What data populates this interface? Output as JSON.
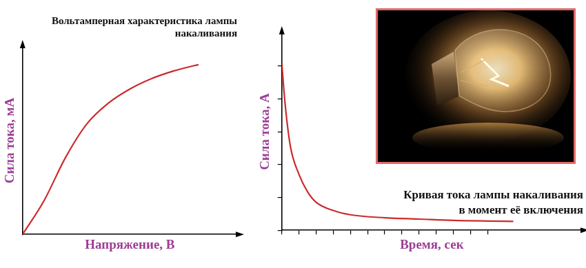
{
  "chart_data": [
    {
      "type": "line",
      "title": [
        "Вольтамперная характеристика лампы",
        "накаливания"
      ],
      "x_label": "Напряжение, В",
      "y_label": "Сила тока, мА",
      "x": [
        0,
        1,
        2,
        3,
        4,
        5,
        6,
        7,
        8,
        8.2
      ],
      "values": [
        0,
        1.8,
        4.1,
        5.9,
        7.0,
        7.75,
        8.3,
        8.7,
        9.0,
        9.05
      ],
      "color": "#cc2b2b",
      "xlim": [
        0,
        10
      ],
      "ylim": [
        0,
        10
      ],
      "grid": false,
      "tick_labels": false
    },
    {
      "type": "line",
      "annotation": [
        "Кривая тока лампы накаливания",
        "в момент её включения"
      ],
      "x_label": "Время, сек",
      "y_label": "Сила тока, А",
      "x": [
        0,
        0.2,
        0.5,
        1,
        1.5,
        2,
        3,
        4,
        6,
        8,
        10,
        12,
        13.5
      ],
      "values": [
        5.06,
        3.8,
        2.55,
        1.7,
        1.17,
        0.85,
        0.6,
        0.47,
        0.38,
        0.34,
        0.3,
        0.28,
        0.27
      ],
      "color": "#cc2b2b",
      "xlim": [
        0,
        17.5
      ],
      "ylim": [
        0,
        6
      ],
      "xticks": [
        0,
        1,
        2,
        3,
        4,
        5,
        6,
        7,
        8,
        9,
        10,
        11,
        12
      ],
      "yticks": [
        0,
        1,
        2,
        3,
        4,
        5
      ],
      "grid": false,
      "tick_labels": false
    }
  ]
}
